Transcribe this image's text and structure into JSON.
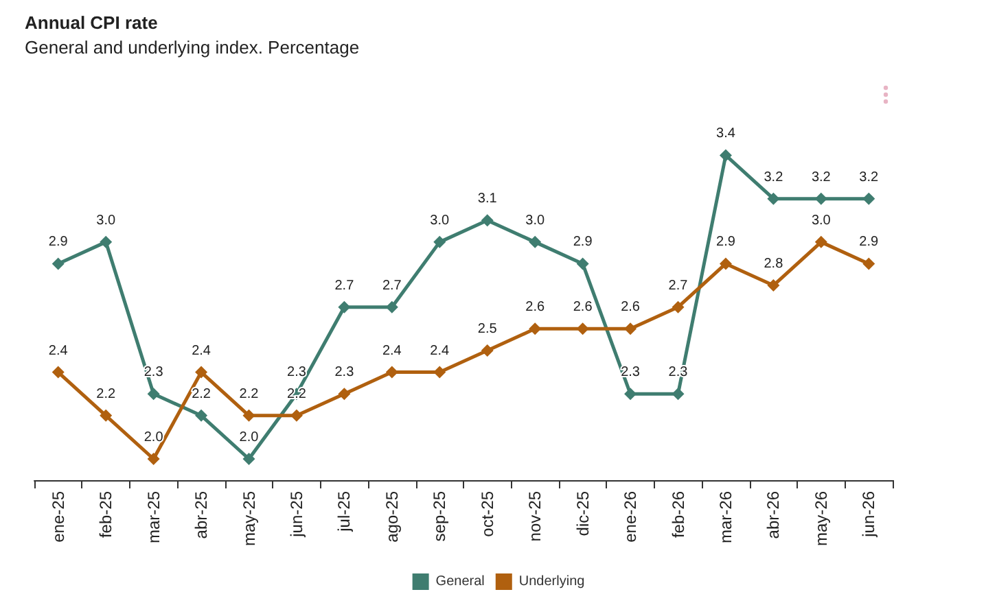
{
  "chart_data": {
    "type": "line",
    "title": "Annual CPI rate",
    "subtitle": "General and underlying index. Percentage",
    "categories": [
      "ene-25",
      "feb-25",
      "mar-25",
      "abr-25",
      "may-25",
      "jun-25",
      "jul-25",
      "ago-25",
      "sep-25",
      "oct-25",
      "nov-25",
      "dic-25",
      "ene-26",
      "feb-26",
      "mar-26",
      "abr-26",
      "may-26",
      "jun-26"
    ],
    "series": [
      {
        "name": "General",
        "color": "#3f7d70",
        "values": [
          2.9,
          3.0,
          2.3,
          2.2,
          2.0,
          2.3,
          2.7,
          2.7,
          3.0,
          3.1,
          3.0,
          2.9,
          2.3,
          2.3,
          3.4,
          3.2,
          3.2,
          3.2
        ],
        "value_labels": [
          "2.9",
          "3.0",
          "2.3",
          "2.2",
          "2.0",
          "2.3",
          "2.7",
          "2.7",
          "3.0",
          "3.1",
          "3.0",
          "2.9",
          "2.3",
          "2.3",
          "3.4",
          "3.2",
          "3.2",
          "3.2"
        ]
      },
      {
        "name": "Underlying",
        "color": "#b0600f",
        "values": [
          2.4,
          2.2,
          2.0,
          2.4,
          2.2,
          2.2,
          2.3,
          2.4,
          2.4,
          2.5,
          2.6,
          2.6,
          2.6,
          2.7,
          2.9,
          2.8,
          3.0,
          2.9
        ],
        "value_labels": [
          "2.4",
          "2.2",
          "2.0",
          "2.4",
          "2.2",
          "2.2",
          "2.3",
          "2.4",
          "2.4",
          "2.5",
          "2.6",
          "2.6",
          "2.6",
          "2.7",
          "2.9",
          "2.8",
          "3.0",
          "2.9"
        ]
      }
    ],
    "marker": "diamond",
    "line_style": "solid",
    "legend": "bottom",
    "tick_labels": "x"
  }
}
